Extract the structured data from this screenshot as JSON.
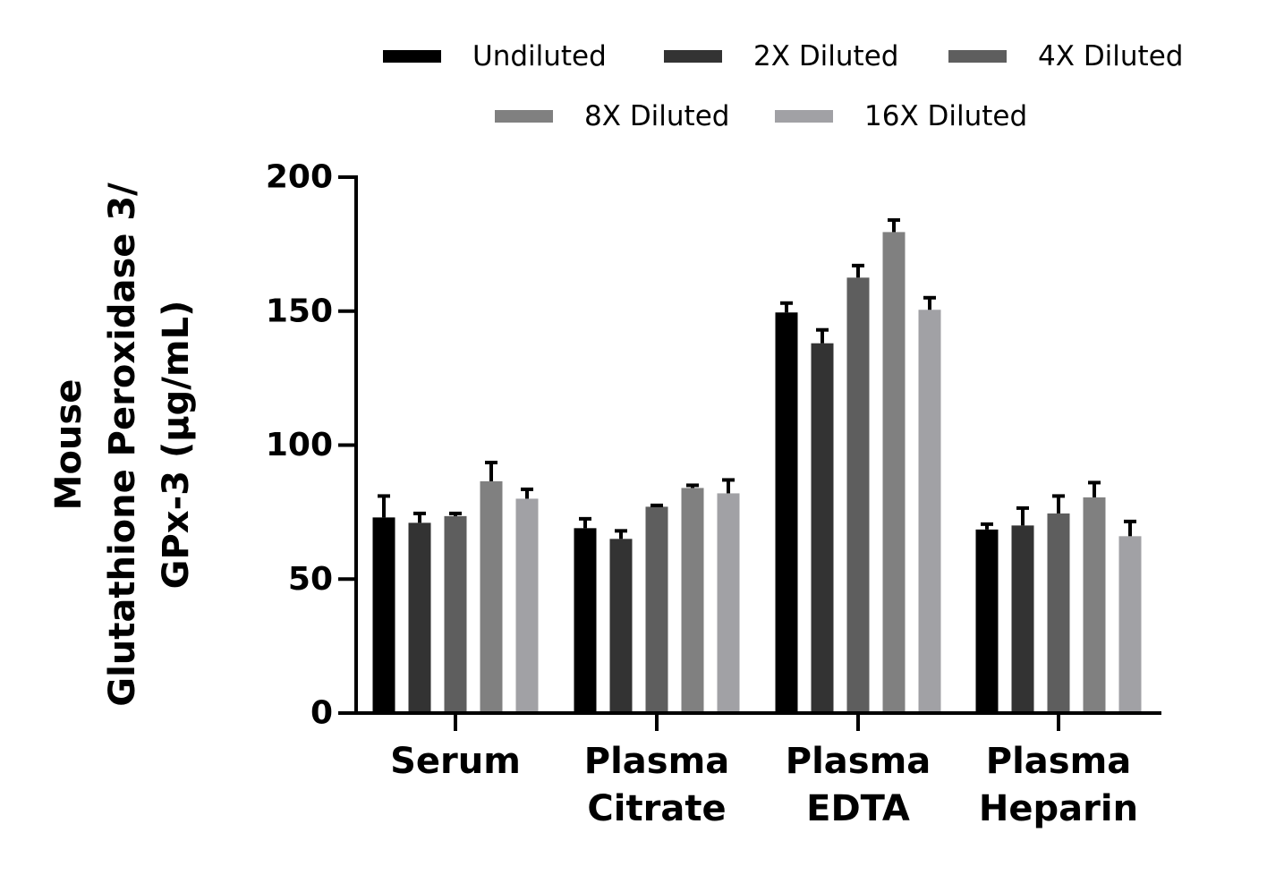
{
  "chart_data": {
    "type": "bar",
    "ylabel_lines": [
      "Mouse",
      "Glutathione Peroxidase 3/",
      "GPx-3 (µg/mL)"
    ],
    "categories": [
      [
        "Serum"
      ],
      [
        "Plasma",
        "Citrate"
      ],
      [
        "Plasma",
        "EDTA"
      ],
      [
        "Plasma",
        "Heparin"
      ]
    ],
    "ylim": [
      0,
      200
    ],
    "yticks": [
      0,
      50,
      100,
      150,
      200
    ],
    "grid": false,
    "legend_position": "top",
    "series": [
      {
        "name": "Undiluted",
        "color": "#000000",
        "values": [
          73,
          69,
          149.5,
          68.5
        ],
        "errors": [
          8,
          3.5,
          3.5,
          2
        ]
      },
      {
        "name": "2X Diluted",
        "color": "#333333",
        "values": [
          71,
          65,
          138,
          70
        ],
        "errors": [
          3.5,
          3,
          5,
          6.5
        ]
      },
      {
        "name": "4X Diluted",
        "color": "#5e5e5e",
        "values": [
          73.5,
          77,
          162.5,
          74.5
        ],
        "errors": [
          1,
          0.5,
          4.5,
          6.5
        ]
      },
      {
        "name": "8X Diluted",
        "color": "#808080",
        "values": [
          86.5,
          84,
          179.5,
          80.5
        ],
        "errors": [
          7,
          1,
          4.5,
          5.5
        ]
      },
      {
        "name": "16X Diluted",
        "color": "#a1a1a5",
        "values": [
          80,
          82,
          150.5,
          66
        ],
        "errors": [
          3.5,
          5,
          4.5,
          5.5
        ]
      }
    ]
  }
}
